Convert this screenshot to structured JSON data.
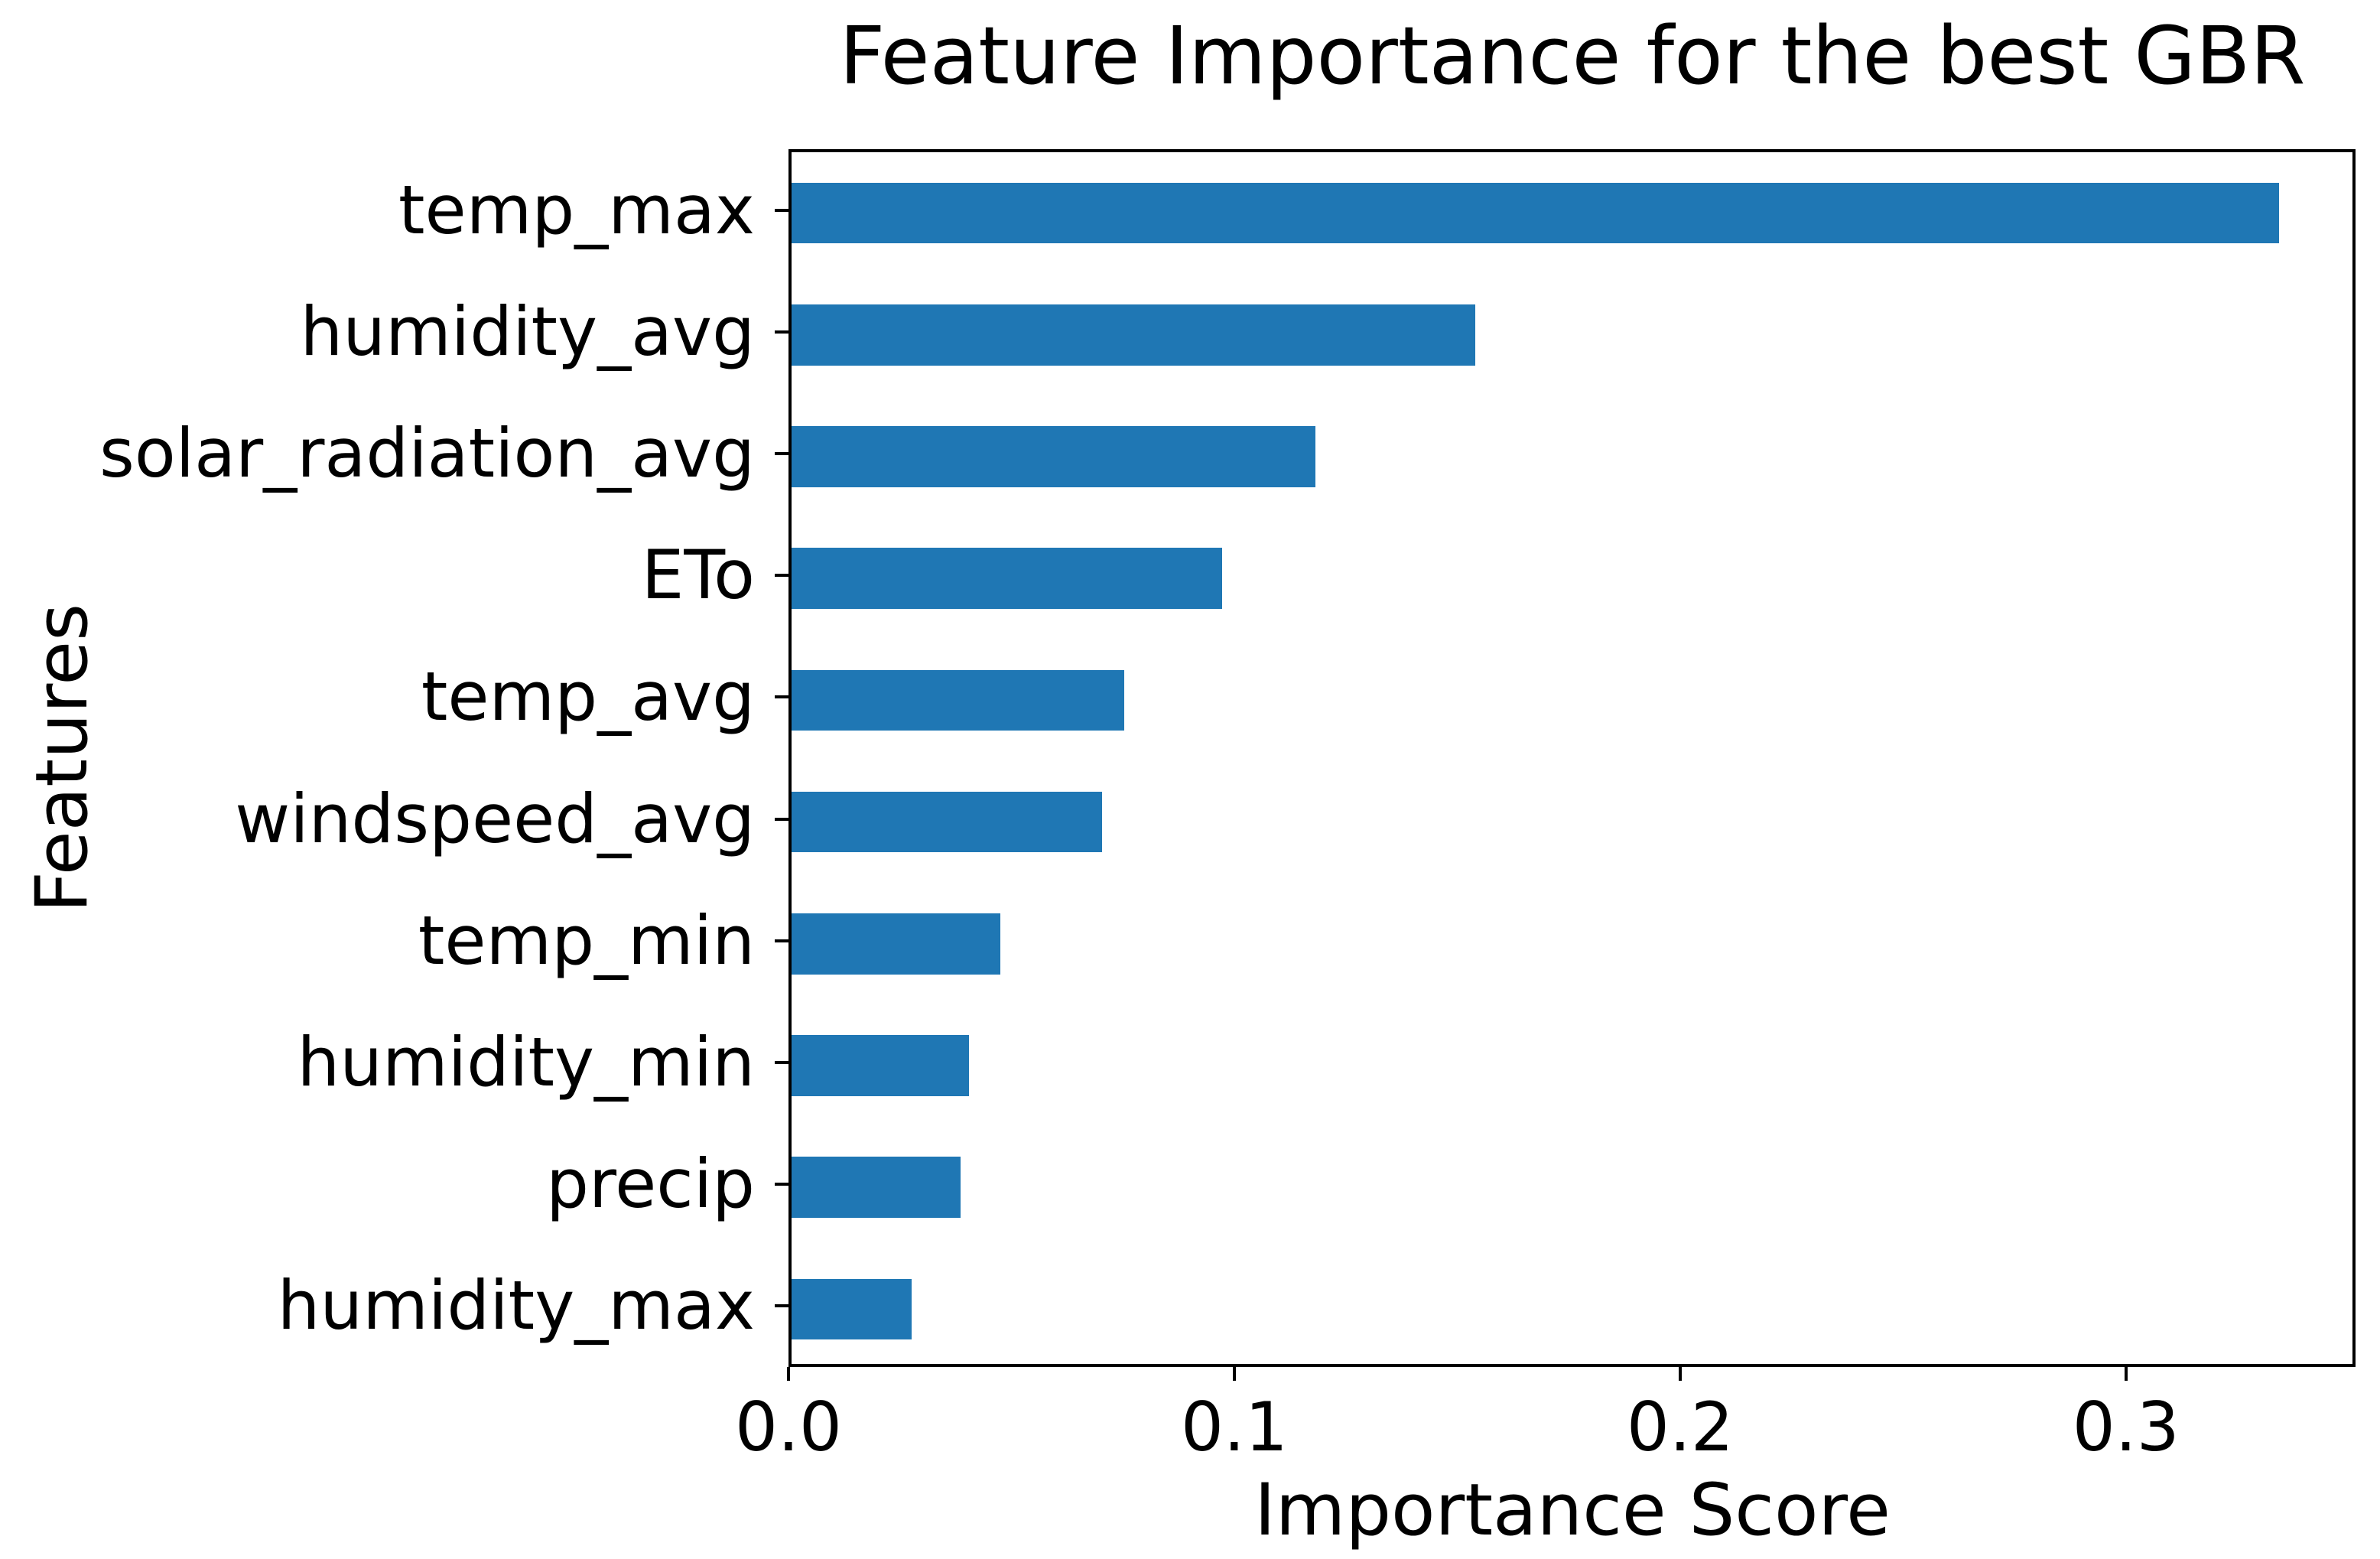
{
  "figure": {
    "background": "#ffffff",
    "text_color": "#000000",
    "spine_color": "#000000"
  },
  "chart_data": {
    "type": "bar",
    "orientation": "horizontal",
    "title": "Feature Importance for the best GBR",
    "xlabel": "Importance Score",
    "ylabel": "Features",
    "categories": [
      "temp_max",
      "humidity_avg",
      "solar_radiation_avg",
      "ETo",
      "temp_avg",
      "windspeed_avg",
      "temp_min",
      "humidity_min",
      "precip",
      "humidity_max"
    ],
    "values": [
      0.335,
      0.154,
      0.118,
      0.097,
      0.075,
      0.07,
      0.047,
      0.04,
      0.038,
      0.027
    ],
    "series_name": "Importance Score",
    "xlim": [
      0,
      0.3515
    ],
    "x_ticks": [
      0.0,
      0.1,
      0.2,
      0.3
    ],
    "x_tick_labels": [
      "0.0",
      "0.1",
      "0.2",
      "0.3"
    ],
    "bar_color": "#1f77b4",
    "grid": false,
    "legend_position": "none"
  }
}
